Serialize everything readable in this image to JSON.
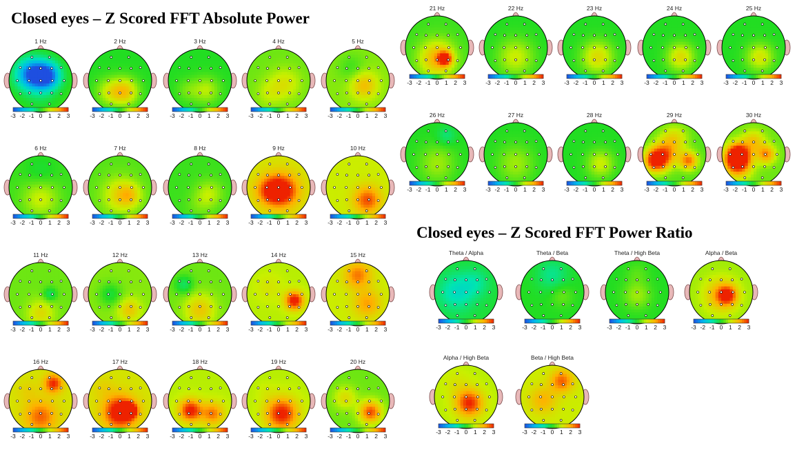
{
  "sections": {
    "absolute_power": {
      "title": "Closed eyes – Z Scored FFT Absolute Power"
    },
    "power_ratio": {
      "title": "Closed eyes – Z Scored FFT Power Ratio"
    }
  },
  "color_scale": {
    "ticks": [
      "-3",
      "-2",
      "-1",
      "0",
      "1",
      "2",
      "3"
    ],
    "colors": [
      "#1e4fe0",
      "#00b4f0",
      "#00e6b0",
      "#22dd22",
      "#c8f000",
      "#ffb000",
      "#ee2200"
    ]
  },
  "head_colors": {
    "outline": "#000000",
    "ears_nose": "#e8b8b8",
    "electrode": "#ffffff"
  },
  "maps": [
    {
      "label": "1 Hz",
      "col": 0,
      "row": 0,
      "base": 0.05,
      "blobs": [
        [
          -0.3,
          -0.2,
          0.35,
          -0.95
        ],
        [
          0.2,
          -0.15,
          0.3,
          -1.0
        ],
        [
          0.0,
          0.5,
          0.35,
          -0.1
        ]
      ]
    },
    {
      "label": "2 Hz",
      "col": 1,
      "row": 0,
      "base": 0.0,
      "blobs": [
        [
          0.15,
          0.35,
          0.3,
          0.55
        ],
        [
          -0.35,
          0.35,
          0.3,
          0.3
        ]
      ]
    },
    {
      "label": "3 Hz",
      "col": 2,
      "row": 0,
      "base": 0.0,
      "blobs": [
        [
          0.2,
          0.3,
          0.3,
          0.3
        ],
        [
          -0.4,
          0.3,
          0.25,
          0.15
        ]
      ]
    },
    {
      "label": "4 Hz",
      "col": 3,
      "row": 0,
      "base": 0.15,
      "blobs": [
        [
          0.2,
          0.1,
          0.35,
          0.25
        ],
        [
          -0.3,
          0.4,
          0.3,
          0.15
        ]
      ]
    },
    {
      "label": "5 Hz",
      "col": 4,
      "row": 0,
      "base": 0.2,
      "blobs": [
        [
          0.2,
          0.15,
          0.3,
          0.4
        ],
        [
          -0.2,
          -0.4,
          0.3,
          -0.15
        ]
      ]
    },
    {
      "label": "6 Hz",
      "col": 0,
      "row": 1,
      "base": 0.05,
      "blobs": [
        [
          0.0,
          0.35,
          0.4,
          0.3
        ],
        [
          0.0,
          -0.5,
          0.35,
          -0.1
        ]
      ]
    },
    {
      "label": "7 Hz",
      "col": 1,
      "row": 1,
      "base": 0.1,
      "blobs": [
        [
          0.0,
          0.25,
          0.4,
          0.35
        ],
        [
          0.3,
          0.25,
          0.25,
          0.3
        ]
      ]
    },
    {
      "label": "8 Hz",
      "col": 2,
      "row": 1,
      "base": 0.05,
      "blobs": [
        [
          0.3,
          0.2,
          0.3,
          0.25
        ],
        [
          0.0,
          0.55,
          0.3,
          0.1
        ]
      ]
    },
    {
      "label": "9 Hz",
      "col": 3,
      "row": 1,
      "base": 0.4,
      "blobs": [
        [
          0.1,
          0.1,
          0.35,
          0.75
        ],
        [
          -0.3,
          0.1,
          0.3,
          0.4
        ]
      ]
    },
    {
      "label": "10 Hz",
      "col": 4,
      "row": 1,
      "base": 0.35,
      "blobs": [
        [
          0.3,
          0.4,
          0.3,
          0.55
        ],
        [
          -0.2,
          -0.3,
          0.3,
          0.0
        ]
      ]
    },
    {
      "label": "11 Hz",
      "col": 0,
      "row": 2,
      "base": 0.15,
      "blobs": [
        [
          0.3,
          0.0,
          0.15,
          -0.3
        ],
        [
          0.0,
          0.6,
          0.3,
          0.3
        ]
      ]
    },
    {
      "label": "12 Hz",
      "col": 1,
      "row": 2,
      "base": 0.2,
      "blobs": [
        [
          -0.3,
          0.0,
          0.25,
          -0.25
        ],
        [
          0.3,
          0.5,
          0.25,
          0.35
        ]
      ]
    },
    {
      "label": "13 Hz",
      "col": 2,
      "row": 2,
      "base": 0.15,
      "blobs": [
        [
          0.0,
          0.5,
          0.35,
          0.4
        ],
        [
          -0.5,
          -0.3,
          0.2,
          -0.3
        ]
      ]
    },
    {
      "label": "14 Hz",
      "col": 3,
      "row": 2,
      "base": 0.3,
      "blobs": [
        [
          0.5,
          0.2,
          0.2,
          0.8
        ],
        [
          -0.3,
          -0.2,
          0.3,
          0.1
        ]
      ]
    },
    {
      "label": "15 Hz",
      "col": 4,
      "row": 2,
      "base": 0.35,
      "blobs": [
        [
          0.0,
          -0.6,
          0.3,
          0.45
        ],
        [
          0.3,
          0.3,
          0.3,
          0.35
        ]
      ]
    },
    {
      "label": "16 Hz",
      "col": 0,
      "row": 3,
      "base": 0.4,
      "blobs": [
        [
          0.4,
          -0.55,
          0.2,
          0.6
        ],
        [
          0.0,
          0.5,
          0.35,
          0.45
        ],
        [
          -0.4,
          -0.3,
          0.25,
          0.1
        ]
      ]
    },
    {
      "label": "17 Hz",
      "col": 1,
      "row": 3,
      "base": 0.4,
      "blobs": [
        [
          0.0,
          0.35,
          0.35,
          0.8
        ],
        [
          0.3,
          0.3,
          0.15,
          1.0
        ],
        [
          -0.5,
          -0.4,
          0.25,
          0.1
        ]
      ]
    },
    {
      "label": "18 Hz",
      "col": 2,
      "row": 3,
      "base": 0.3,
      "blobs": [
        [
          -0.3,
          0.3,
          0.25,
          0.75
        ],
        [
          0.4,
          0.4,
          0.25,
          0.5
        ]
      ]
    },
    {
      "label": "19 Hz",
      "col": 3,
      "row": 3,
      "base": 0.3,
      "blobs": [
        [
          0.1,
          0.4,
          0.35,
          0.75
        ],
        [
          -0.4,
          -0.3,
          0.2,
          0.05
        ]
      ]
    },
    {
      "label": "20 Hz",
      "col": 4,
      "row": 3,
      "base": 0.15,
      "blobs": [
        [
          0.4,
          0.35,
          0.25,
          0.75
        ],
        [
          -0.4,
          -0.1,
          0.25,
          0.3
        ]
      ]
    },
    {
      "label": "21 Hz",
      "col": 5,
      "row": 0,
      "base": 0.05,
      "blobs": [
        [
          0.0,
          0.35,
          0.4,
          0.6
        ],
        [
          0.25,
          0.35,
          0.15,
          0.85
        ]
      ]
    },
    {
      "label": "22 Hz",
      "col": 6,
      "row": 0,
      "base": 0.0,
      "blobs": [
        [
          0.0,
          0.3,
          0.4,
          0.35
        ]
      ]
    },
    {
      "label": "23 Hz",
      "col": 7,
      "row": 0,
      "base": 0.0,
      "blobs": [
        [
          0.1,
          0.3,
          0.35,
          0.45
        ]
      ]
    },
    {
      "label": "24 Hz",
      "col": 8,
      "row": 0,
      "base": 0.0,
      "blobs": [
        [
          0.2,
          0.3,
          0.3,
          0.45
        ]
      ]
    },
    {
      "label": "25 Hz",
      "col": 9,
      "row": 0,
      "base": 0.0,
      "blobs": [
        [
          0.2,
          0.3,
          0.3,
          0.4
        ]
      ]
    },
    {
      "label": "26 Hz",
      "col": 5,
      "row": 1,
      "base": 0.0,
      "blobs": [
        [
          0.0,
          0.3,
          0.4,
          0.25
        ],
        [
          0.3,
          -0.6,
          0.2,
          -0.2
        ]
      ]
    },
    {
      "label": "27 Hz",
      "col": 6,
      "row": 1,
      "base": 0.0,
      "blobs": [
        [
          0.0,
          0.3,
          0.4,
          0.25
        ]
      ]
    },
    {
      "label": "28 Hz",
      "col": 7,
      "row": 1,
      "base": 0.0,
      "blobs": [
        [
          0.2,
          0.3,
          0.3,
          0.35
        ]
      ]
    },
    {
      "label": "29 Hz",
      "col": 8,
      "row": 1,
      "base": 0.1,
      "blobs": [
        [
          -0.6,
          0.2,
          0.25,
          0.9
        ],
        [
          -0.3,
          0.0,
          0.3,
          0.6
        ],
        [
          0.45,
          0.2,
          0.2,
          0.7
        ],
        [
          0.0,
          -0.5,
          0.3,
          0.35
        ]
      ]
    },
    {
      "label": "30 Hz",
      "col": 9,
      "row": 1,
      "base": 0.15,
      "blobs": [
        [
          -0.5,
          0.0,
          0.25,
          0.95
        ],
        [
          -0.5,
          0.3,
          0.3,
          0.8
        ],
        [
          0.4,
          0.0,
          0.2,
          0.6
        ],
        [
          0.0,
          -0.4,
          0.25,
          0.4
        ]
      ]
    },
    {
      "label": "Theta / Alpha",
      "col": 10,
      "row": 0,
      "base": -0.05,
      "blobs": [
        [
          -0.3,
          0.0,
          0.4,
          -0.35
        ],
        [
          0.3,
          -0.3,
          0.3,
          -0.2
        ],
        [
          0.0,
          0.5,
          0.3,
          0.0
        ]
      ]
    },
    {
      "label": "Theta / Beta",
      "col": 11,
      "row": 0,
      "base": 0.0,
      "blobs": [
        [
          0.0,
          -0.55,
          0.35,
          -0.25
        ],
        [
          0.3,
          0.1,
          0.25,
          0.15
        ]
      ]
    },
    {
      "label": "Theta / High Beta",
      "col": 12,
      "row": 0,
      "base": 0.0,
      "blobs": [
        [
          0.0,
          0.1,
          0.3,
          0.25
        ],
        [
          0.0,
          -0.6,
          0.25,
          0.1
        ]
      ]
    },
    {
      "label": "Alpha / Beta",
      "col": 13,
      "row": 0,
      "base": 0.25,
      "blobs": [
        [
          0.0,
          0.1,
          0.35,
          0.45
        ],
        [
          0.2,
          0.1,
          0.2,
          0.6
        ]
      ]
    },
    {
      "label": "Alpha / High Beta",
      "col": 10,
      "row": 1,
      "base": 0.3,
      "blobs": [
        [
          0.1,
          0.2,
          0.3,
          0.7
        ],
        [
          -0.3,
          -0.4,
          0.3,
          0.1
        ]
      ]
    },
    {
      "label": "Beta / High Beta",
      "col": 11,
      "row": 1,
      "base": 0.35,
      "blobs": [
        [
          0.3,
          -0.5,
          0.25,
          0.5
        ],
        [
          -0.3,
          0.1,
          0.3,
          0.3
        ]
      ]
    }
  ]
}
